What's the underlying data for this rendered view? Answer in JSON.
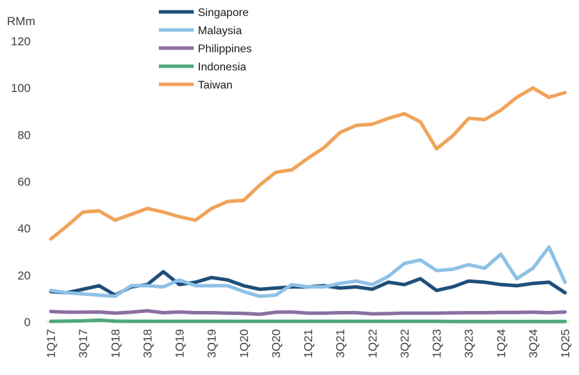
{
  "chart_data": {
    "type": "line",
    "title": "",
    "ylabel": "RMm",
    "xlabel": "",
    "ylim": [
      0,
      120
    ],
    "yticks": [
      0,
      20,
      40,
      60,
      80,
      100,
      120
    ],
    "grid": false,
    "legend_placement": "top-left",
    "categories": [
      "1Q17",
      "2Q17",
      "3Q17",
      "4Q17",
      "1Q18",
      "2Q18",
      "3Q18",
      "4Q18",
      "1Q19",
      "2Q19",
      "3Q19",
      "4Q19",
      "1Q20",
      "2Q20",
      "3Q20",
      "4Q20",
      "1Q21",
      "2Q21",
      "3Q21",
      "4Q21",
      "1Q22",
      "2Q22",
      "3Q22",
      "4Q22",
      "1Q23",
      "2Q23",
      "3Q23",
      "4Q23",
      "1Q24",
      "2Q24",
      "3Q24",
      "4Q24",
      "1Q25"
    ],
    "tick_labels": [
      "1Q17",
      "3Q17",
      "1Q18",
      "3Q18",
      "1Q19",
      "3Q19",
      "1Q20",
      "3Q20",
      "1Q21",
      "3Q21",
      "1Q22",
      "3Q22",
      "1Q23",
      "3Q23",
      "1Q24",
      "3Q24",
      "1Q25"
    ],
    "series": [
      {
        "name": "Singapore",
        "color": "#1f4e79",
        "values": [
          13,
          12.5,
          14,
          15.5,
          11.5,
          15,
          16,
          21.5,
          16,
          17,
          19,
          18,
          15.5,
          14,
          14.5,
          15,
          15,
          15.5,
          14.5,
          15,
          14,
          17,
          16,
          18.5,
          13.5,
          15,
          17.5,
          17,
          16,
          15.5,
          16.5,
          17,
          12.5
        ]
      },
      {
        "name": "Malaysia",
        "color": "#8ec1e6",
        "values": [
          13.5,
          12.5,
          12,
          11.5,
          11,
          15.5,
          15.5,
          15,
          18,
          15.5,
          15.5,
          15.5,
          13,
          11,
          11.5,
          16,
          15,
          15,
          16.5,
          17.5,
          16,
          19.5,
          25,
          26.5,
          22,
          22.5,
          24.5,
          23,
          29,
          18.5,
          23,
          32,
          17
        ]
      },
      {
        "name": "Philippines",
        "color": "#8a6fa3",
        "values": [
          4.5,
          4.2,
          4.2,
          4.3,
          3.8,
          4.2,
          4.8,
          4.0,
          4.3,
          4.0,
          4.0,
          3.8,
          3.7,
          3.3,
          4.2,
          4.3,
          3.8,
          3.8,
          4.0,
          4.0,
          3.5,
          3.6,
          3.8,
          3.8,
          3.8,
          3.9,
          4.0,
          4.0,
          4.1,
          4.1,
          4.2,
          4.0,
          4.3
        ]
      },
      {
        "name": "Indonesia",
        "color": "#4ea87a",
        "values": [
          0.3,
          0.4,
          0.5,
          0.8,
          0.4,
          0.3,
          0.3,
          0.3,
          0.3,
          0.3,
          0.3,
          0.3,
          0.3,
          0.3,
          0.3,
          0.3,
          0.3,
          0.3,
          0.3,
          0.3,
          0.3,
          0.3,
          0.3,
          0.3,
          0.3,
          0.2,
          0.2,
          0.2,
          0.2,
          0.2,
          0.2,
          0.2,
          0.2
        ]
      },
      {
        "name": "Taiwan",
        "color": "#f0a35a",
        "values": [
          35.5,
          41,
          47,
          47.5,
          43.5,
          46,
          48.5,
          47,
          45,
          43.5,
          48.5,
          51.5,
          52,
          58.5,
          64,
          65,
          70,
          74.5,
          81,
          84,
          84.5,
          87,
          89,
          85.5,
          74,
          79.5,
          87,
          86.5,
          90.5,
          96,
          100,
          96,
          98
        ]
      }
    ]
  }
}
